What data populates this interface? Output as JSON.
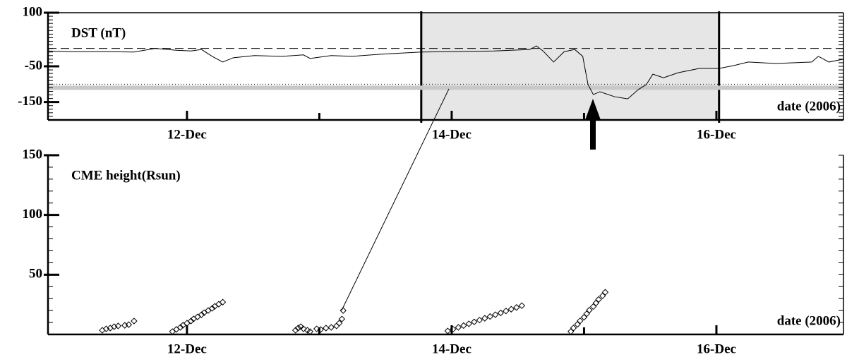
{
  "chart_data": [
    {
      "type": "line",
      "title": "DST (nT)",
      "xlabel": "date (2006)",
      "color": "#000000",
      "x": [
        10.95,
        11.12,
        11.39,
        11.6,
        11.76,
        11.92,
        12.03,
        12.11,
        12.19,
        12.27,
        12.35,
        12.51,
        12.72,
        12.88,
        12.93,
        13.09,
        13.25,
        13.47,
        13.77,
        14.0,
        14.32,
        14.59,
        14.64,
        14.69,
        14.77,
        14.85,
        14.93,
        14.99,
        15.03,
        15.07,
        15.12,
        15.23,
        15.33,
        15.41,
        15.47,
        15.52,
        15.6,
        15.71,
        15.87,
        16.02,
        16.13,
        16.24,
        16.45,
        16.72,
        16.77,
        16.85,
        16.96
      ],
      "values": [
        -7,
        -9,
        -9,
        -10,
        0,
        -5,
        -7,
        -3,
        -22,
        -38,
        -26,
        -20,
        -22,
        -18,
        -28,
        -20,
        -22,
        -16,
        -10,
        -9,
        -7,
        -3,
        7,
        -7,
        -38,
        -9,
        -3,
        -22,
        -101,
        -129,
        -121,
        -135,
        -141,
        -115,
        -101,
        -72,
        -82,
        -68,
        -56,
        -56,
        -48,
        -38,
        -42,
        -38,
        -22,
        -38,
        -30
      ],
      "xlim": [
        10.95,
        16.96
      ],
      "ylim": [
        -200,
        100
      ],
      "xticks": [
        {
          "value": 12,
          "label": "12-Dec"
        },
        {
          "value": 14,
          "label": "14-Dec"
        },
        {
          "value": 16,
          "label": "16-Dec"
        }
      ],
      "xminor_ticks": [
        13,
        15
      ],
      "yticks": [
        100,
        -50,
        -150
      ],
      "yminor_step": 10,
      "shade": [
        13.77,
        16.02
      ],
      "shade_color": "#e6e6e6",
      "hlines": [
        {
          "value": 0,
          "style": "dashed"
        },
        {
          "value": -100,
          "style": "dotted"
        },
        {
          "value": -110,
          "style": "band"
        }
      ]
    },
    {
      "type": "scatter",
      "title": "CME height(Rsun)",
      "xlabel": "date (2006)",
      "series": [
        {
          "color": "#000000",
          "x": [
            11.36,
            11.39,
            11.42,
            11.45,
            11.48,
            11.53,
            11.56,
            11.6
          ],
          "values": [
            3.5,
            4.7,
            5.3,
            6.5,
            7.1,
            7.6,
            8.2,
            11.2
          ]
        },
        {
          "color": "#000000",
          "x": [
            11.89,
            11.92,
            11.95,
            11.97,
            12.0,
            12.03,
            12.05,
            12.08,
            12.11,
            12.13,
            12.16,
            12.19,
            12.21,
            12.24,
            12.27
          ],
          "values": [
            2.4,
            4.2,
            5.9,
            7.7,
            9.4,
            11.2,
            13.0,
            14.7,
            16.5,
            18.2,
            20.0,
            21.8,
            23.5,
            25.3,
            27.0
          ]
        },
        {
          "color": "#000000",
          "x": [
            12.82,
            12.84,
            12.86,
            12.88,
            12.91,
            12.93,
            12.98,
            13.01,
            13.05,
            13.09,
            13.13,
            13.15,
            13.17,
            13.18
          ],
          "values": [
            3.5,
            5.3,
            6.5,
            4.7,
            3.5,
            2.4,
            4.7,
            4.1,
            5.3,
            5.9,
            7.1,
            9.4,
            12.9,
            20
          ]
        },
        {
          "color": "#000000",
          "x": [
            13.97,
            14.01,
            14.05,
            14.09,
            14.13,
            14.17,
            14.21,
            14.25,
            14.29,
            14.33,
            14.37,
            14.41,
            14.45,
            14.49,
            14.53
          ],
          "values": [
            2.9,
            4.4,
            5.9,
            7.4,
            8.9,
            10.5,
            12.0,
            13.5,
            15.0,
            16.5,
            18.0,
            19.6,
            21.1,
            22.6,
            24.1
          ]
        },
        {
          "color": "#000000",
          "x": [
            14.9,
            14.92,
            14.95,
            14.97,
            15.0,
            15.02,
            15.04,
            15.07,
            15.09,
            15.11,
            15.14,
            15.16
          ],
          "values": [
            2.4,
            5.4,
            8.4,
            11.4,
            14.4,
            17.3,
            20.3,
            23.3,
            26.3,
            29.3,
            32.3,
            35.3
          ]
        }
      ],
      "xlim": [
        10.95,
        16.96
      ],
      "ylim": [
        0,
        150
      ],
      "xticks": [
        {
          "value": 12,
          "label": "12-Dec"
        },
        {
          "value": 14,
          "label": "14-Dec"
        },
        {
          "value": 16,
          "label": "16-Dec"
        }
      ],
      "xminor_ticks": [
        13,
        15
      ],
      "yticks": [
        50,
        100,
        150
      ],
      "yminor_step": 10
    }
  ]
}
